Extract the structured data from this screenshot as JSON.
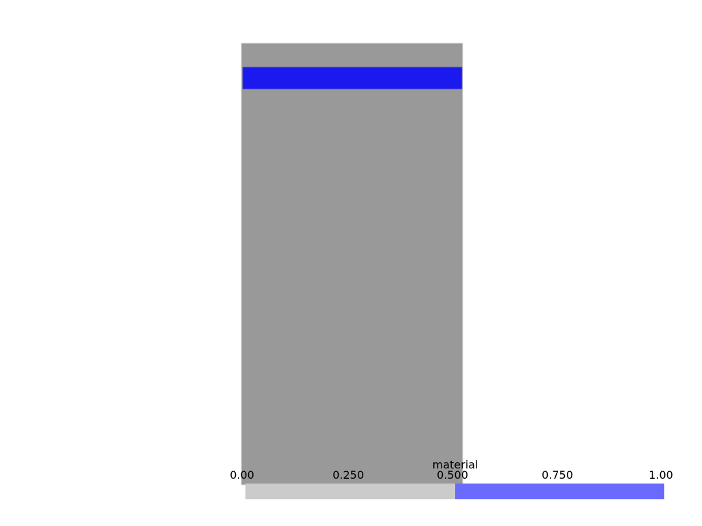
{
  "scene": {
    "background_color": "#ffffff",
    "block_color": "#999999",
    "band_color": "#1a1aee"
  },
  "scalar_bar": {
    "title": "material",
    "ticks": [
      "0.00",
      "0.250",
      "0.500",
      "0.750",
      "1.00"
    ],
    "range": [
      0.0,
      1.0
    ],
    "segments": [
      {
        "from": 0.0,
        "to": 0.5,
        "color": "#cbcbcb"
      },
      {
        "from": 0.5,
        "to": 1.0,
        "color": "#6a6aff"
      }
    ]
  }
}
